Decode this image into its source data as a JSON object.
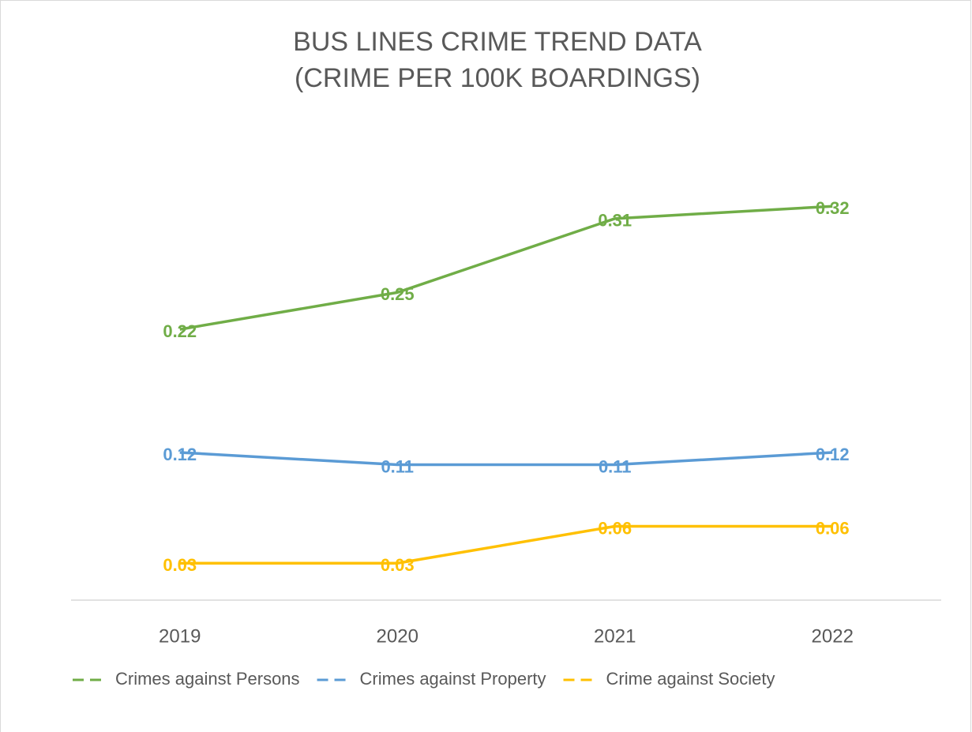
{
  "chart_data": {
    "type": "line",
    "title": "BUS LINES CRIME TREND DATA",
    "subtitle": "(CRIME PER 100K BOARDINGS)",
    "categories": [
      "2019",
      "2020",
      "2021",
      "2022"
    ],
    "series": [
      {
        "name": "Crimes against Persons",
        "color": "#70ad47",
        "values": [
          0.22,
          0.25,
          0.31,
          0.32
        ]
      },
      {
        "name": "Crimes against Property",
        "color": "#5b9bd5",
        "values": [
          0.12,
          0.11,
          0.11,
          0.12
        ]
      },
      {
        "name": "Crime against Society",
        "color": "#ffc000",
        "values": [
          0.03,
          0.03,
          0.06,
          0.06
        ]
      }
    ],
    "ylim": [
      0,
      0.35
    ],
    "legend": "bottom"
  }
}
